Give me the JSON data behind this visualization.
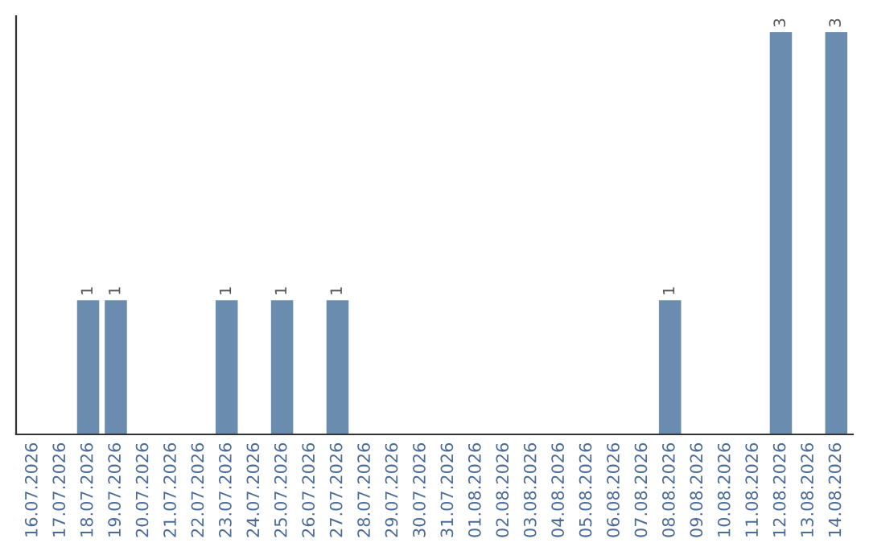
{
  "chart_data": {
    "type": "bar",
    "categories": [
      "16.07.2026",
      "17.07.2026",
      "18.07.2026",
      "19.07.2026",
      "20.07.2026",
      "21.07.2026",
      "22.07.2026",
      "23.07.2026",
      "24.07.2026",
      "25.07.2026",
      "26.07.2026",
      "27.07.2026",
      "28.07.2026",
      "29.07.2026",
      "30.07.2026",
      "31.07.2026",
      "01.08.2026",
      "02.08.2026",
      "03.08.2026",
      "04.08.2026",
      "05.08.2026",
      "06.08.2026",
      "07.08.2026",
      "08.08.2026",
      "09.08.2026",
      "10.08.2026",
      "11.08.2026",
      "12.08.2026",
      "13.08.2026",
      "14.08.2026"
    ],
    "values": [
      null,
      null,
      1,
      1,
      null,
      null,
      null,
      1,
      null,
      1,
      null,
      1,
      null,
      null,
      null,
      null,
      null,
      null,
      null,
      null,
      null,
      null,
      null,
      1,
      null,
      null,
      null,
      3,
      null,
      3
    ],
    "color": "#6a8caf",
    "data_labels": true,
    "grid": false,
    "tick_labels": "x"
  }
}
